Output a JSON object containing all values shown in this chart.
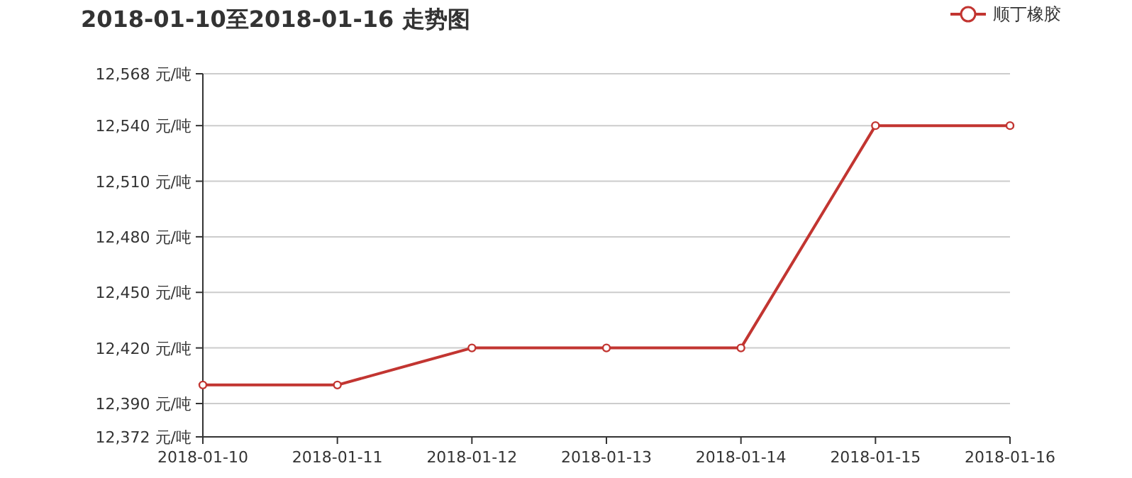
{
  "chart_data": {
    "type": "line",
    "title": "2018-01-10至2018-01-16 走势图",
    "categories": [
      "2018-01-10",
      "2018-01-11",
      "2018-01-12",
      "2018-01-13",
      "2018-01-14",
      "2018-01-15",
      "2018-01-16"
    ],
    "series": [
      {
        "name": "顺丁橡胶",
        "color": "#c23531",
        "values": [
          12400,
          12400,
          12420,
          12420,
          12420,
          12540,
          12540
        ]
      }
    ],
    "ylim": [
      12372,
      12568
    ],
    "yticks": [
      {
        "value": 12372,
        "label": "12,372 元/吨"
      },
      {
        "value": 12390,
        "label": "12,390 元/吨"
      },
      {
        "value": 12420,
        "label": "12,420 元/吨"
      },
      {
        "value": 12450,
        "label": "12,450 元/吨"
      },
      {
        "value": 12480,
        "label": "12,480 元/吨"
      },
      {
        "value": 12510,
        "label": "12,510 元/吨"
      },
      {
        "value": 12540,
        "label": "12,540 元/吨"
      },
      {
        "value": 12568,
        "label": "12,568 元/吨"
      }
    ],
    "grid": "y",
    "legend": "top right",
    "marker": "circle"
  }
}
